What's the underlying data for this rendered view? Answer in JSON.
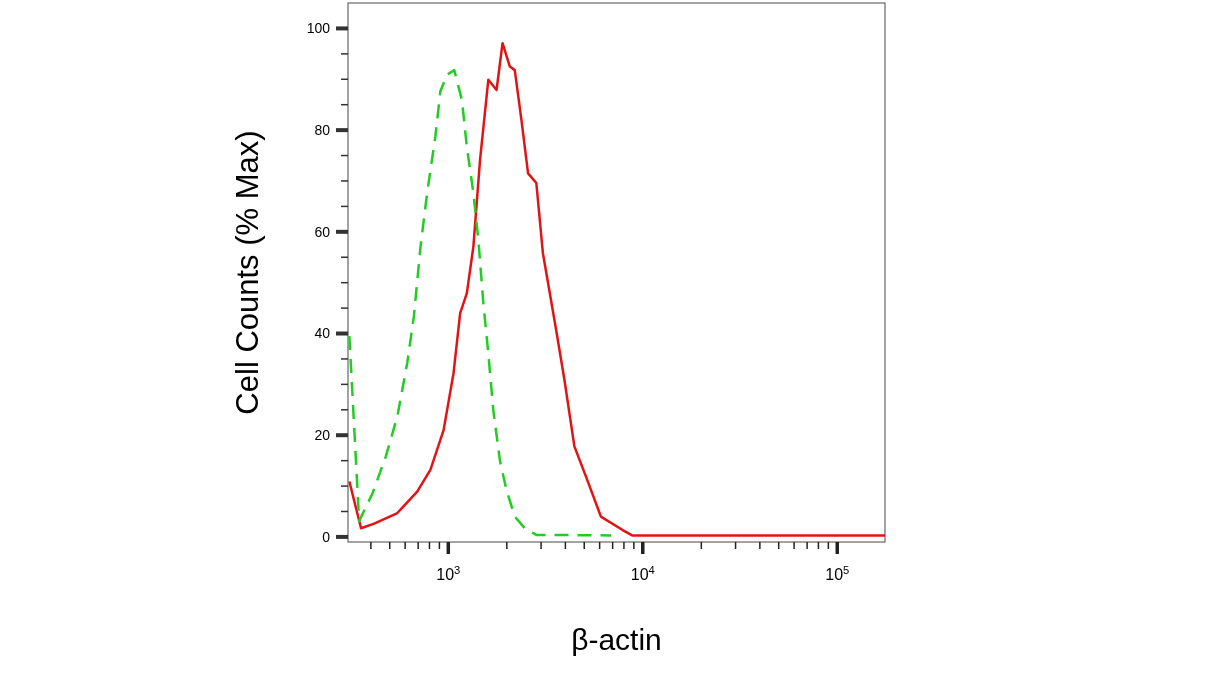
{
  "chart_data": {
    "type": "line",
    "xlabel": "β-actin",
    "ylabel": "Cell Counts (% Max)",
    "log": "x",
    "xlim": [
      305,
      176000
    ],
    "ylim": [
      -1,
      105
    ],
    "xticks": [
      {
        "value": 400,
        "label": null
      },
      {
        "value": 500,
        "label": null
      },
      {
        "value": 600,
        "label": null
      },
      {
        "value": 700,
        "label": null
      },
      {
        "value": 800,
        "label": null
      },
      {
        "value": 900,
        "label": null
      },
      {
        "value": 1000,
        "label": "10$^{3}$"
      },
      {
        "value": 2000,
        "label": null
      },
      {
        "value": 3000,
        "label": null
      },
      {
        "value": 4000,
        "label": null
      },
      {
        "value": 5000,
        "label": null
      },
      {
        "value": 6000,
        "label": null
      },
      {
        "value": 7000,
        "label": null
      },
      {
        "value": 8000,
        "label": null
      },
      {
        "value": 9000,
        "label": null
      },
      {
        "value": 10000,
        "label": "10$^{4}$"
      },
      {
        "value": 20000,
        "label": null
      },
      {
        "value": 30000,
        "label": null
      },
      {
        "value": 40000,
        "label": null
      },
      {
        "value": 50000,
        "label": null
      },
      {
        "value": 60000,
        "label": null
      },
      {
        "value": 70000,
        "label": null
      },
      {
        "value": 80000,
        "label": null
      },
      {
        "value": 90000,
        "label": null
      },
      {
        "value": 100000,
        "label": "10$^{5}$"
      }
    ],
    "yticks": [
      0,
      {
        "value": 5,
        "label": null
      },
      {
        "value": 10,
        "label": null
      },
      {
        "value": 15,
        "label": null
      },
      20,
      {
        "value": 25,
        "label": null
      },
      {
        "value": 30,
        "label": null
      },
      {
        "value": 35,
        "label": null
      },
      40,
      {
        "value": 45,
        "label": null
      },
      {
        "value": 50,
        "label": null
      },
      {
        "value": 55,
        "label": null
      },
      60,
      {
        "value": 65,
        "label": null
      },
      {
        "value": 70,
        "label": null
      },
      {
        "value": 75,
        "label": null
      },
      80,
      {
        "value": 85,
        "label": null
      },
      {
        "value": 90,
        "label": null
      },
      {
        "value": 95,
        "label": null
      },
      100
    ],
    "marker": "none",
    "series": [
      {
        "color": "#e01414",
        "line_style": "solid",
        "x": [
          310,
          356,
          416,
          547,
          692,
          809,
          946,
          1064,
          1151,
          1245,
          1346,
          1456,
          1606,
          1771,
          1901,
          2072,
          2197,
          2377,
          2571,
          2836,
          3065,
          3586,
          3955,
          4450,
          5100,
          6090,
          7840,
          8820,
          20000,
          100000,
          176000
        ],
        "values": [
          10.9,
          1.7,
          2.6,
          4.7,
          8.9,
          13.2,
          21.0,
          32.2,
          44.0,
          47.9,
          57.1,
          74.1,
          89.9,
          87.9,
          97.1,
          92.5,
          91.8,
          82.0,
          71.5,
          69.6,
          55.8,
          40.7,
          30.9,
          17.8,
          11.9,
          4.0,
          1.4,
          0.3,
          0.3,
          0.3,
          0.3
        ]
      },
      {
        "color": "#22cc22",
        "line_style": "dashed",
        "x": [
          310,
          348,
          408,
          477,
          547,
          615,
          665,
          720,
          778,
          858,
          910,
          985,
          1073,
          1175,
          1245,
          1346,
          1428,
          1514,
          1606,
          1703,
          1841,
          1991,
          2197,
          2472,
          2836,
          6880
        ],
        "values": [
          39.5,
          3.1,
          8.6,
          15.8,
          23.7,
          34.2,
          43.3,
          57.1,
          67.6,
          78.7,
          87.6,
          90.9,
          91.8,
          85.9,
          76.8,
          67.6,
          58.4,
          46.0,
          36.1,
          25.0,
          15.1,
          9.2,
          4.0,
          1.7,
          0.4,
          0.3
        ]
      }
    ]
  }
}
